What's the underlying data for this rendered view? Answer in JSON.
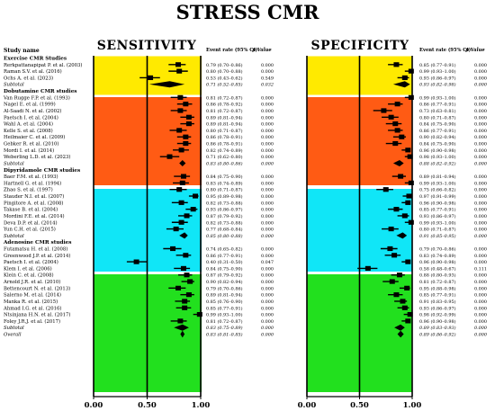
{
  "title": "STRESS CMR",
  "colors": {
    "exercise": "#ffea00",
    "dobutamine": "#ff5b14",
    "dipyridamole": "#10e6f7",
    "adenosine": "#22e01e"
  },
  "study_header": "Study name",
  "panels": [
    {
      "title": "SENSITIVITY",
      "col_rate": "Event rate (95% CI)",
      "col_p": "p Value"
    },
    {
      "title": "SPECIFICITY",
      "col_rate": "Event rate (95% CI)",
      "col_p": "p Value"
    }
  ],
  "axis_ticks": [
    "0.00",
    "0.50",
    "1.00"
  ],
  "chart_data": {
    "type": "forest",
    "xlim": [
      0,
      1
    ],
    "groups": [
      {
        "name": "Exercise CMR Studies",
        "color_key": "exercise",
        "rows": [
          {
            "name": "Rerkpattanapipat P. et al. (2003)",
            "sens": 0.79,
            "sens_ci": "0.79 (0.70–0.86)",
            "sens_p": "0.000",
            "spec": 0.85,
            "spec_ci": "0.85 (0.77–0.91)",
            "spec_p": "0.000"
          },
          {
            "name": "Raman S.V. et al. (2016)",
            "sens": 0.8,
            "sens_ci": "0.80 (0.70–0.88)",
            "sens_p": "0.000",
            "spec": 0.99,
            "spec_ci": "0.99 (0.93–1.00)",
            "spec_p": "0.000"
          },
          {
            "name": "Ochs A. et al. (2023)",
            "sens": 0.53,
            "sens_ci": "0.53 (0.43–0.62)",
            "sens_p": "0.549",
            "spec": 0.93,
            "spec_ci": "0.93 (0.86–0.97)",
            "spec_p": "0.000"
          },
          {
            "name": "Subtotal",
            "subtotal": true,
            "sens": 0.71,
            "sens_ci": "0.71 (0.52–0.85)",
            "sens_p": "0.032",
            "spec": 0.93,
            "spec_ci": "0.93 (0.82–0.98)",
            "spec_p": "0.000"
          }
        ]
      },
      {
        "name": "Dobutamine CMR studies",
        "color_key": "dobutamine",
        "rows": [
          {
            "name": "Van Rugge F.P. et al. (1993)",
            "sens": 0.81,
            "sens_ci": "0.81 (0.72–0.87)",
            "sens_p": "0.000",
            "spec": 0.99,
            "spec_ci": "0.99 (0.93–1.00)",
            "spec_p": "0.000"
          },
          {
            "name": "Nagel E. et al. (1999)",
            "sens": 0.86,
            "sens_ci": "0.86 (0.78–0.92)",
            "sens_p": "0.000",
            "spec": 0.86,
            "spec_ci": "0.86 (0.77–0.91)",
            "spec_p": "0.000"
          },
          {
            "name": "Al-Saadi N. et al. (2002)",
            "sens": 0.81,
            "sens_ci": "0.81 (0.72–0.87)",
            "sens_p": "0.000",
            "spec": 0.73,
            "spec_ci": "0.73 (0.63–0.81)",
            "spec_p": "0.000"
          },
          {
            "name": "Paetsch I. et al. (2004)",
            "sens": 0.89,
            "sens_ci": "0.89 (0.81–0.94)",
            "sens_p": "0.000",
            "spec": 0.8,
            "spec_ci": "0.80 (0.71–0.87)",
            "spec_p": "0.000"
          },
          {
            "name": "Wahl A. et al. (2004)",
            "sens": 0.89,
            "sens_ci": "0.89 (0.81–0.94)",
            "sens_p": "0.000",
            "spec": 0.84,
            "spec_ci": "0.84 (0.75–0.90)",
            "spec_p": "0.000"
          },
          {
            "name": "Kelle S. et al. (2008)",
            "sens": 0.8,
            "sens_ci": "0.80 (0.71–0.87)",
            "sens_p": "0.000",
            "spec": 0.86,
            "spec_ci": "0.86 (0.77–0.91)",
            "spec_p": "0.000"
          },
          {
            "name": "Heilmaier C. et al. (2009)",
            "sens": 0.86,
            "sens_ci": "0.86 (0.78–0.91)",
            "sens_p": "0.000",
            "spec": 0.9,
            "spec_ci": "0.90 (0.82–0.94)",
            "spec_p": "0.000"
          },
          {
            "name": "Gebker R. et al. (2010)",
            "sens": 0.86,
            "sens_ci": "0.86 (0.78–0.91)",
            "sens_p": "0.000",
            "spec": 0.84,
            "spec_ci": "0.84 (0.75–0.90)",
            "spec_p": "0.000"
          },
          {
            "name": "Mordi I. et al. (2014)",
            "sens": 0.82,
            "sens_ci": "0.82 (0.74–0.89)",
            "sens_p": "0.000",
            "spec": 0.96,
            "spec_ci": "0.96 (0.90–0.98)",
            "spec_p": "0.000"
          },
          {
            "name": "Weberling L.D. et al. (2023)",
            "sens": 0.71,
            "sens_ci": "0.71 (0.62–0.80)",
            "sens_p": "0.000",
            "spec": 0.98,
            "spec_ci": "0.98 (0.93–1.00)",
            "spec_p": "0.000"
          },
          {
            "name": "Subtotal",
            "subtotal": true,
            "sens": 0.83,
            "sens_ci": "0.83 (0.80–0.86)",
            "sens_p": "0.000",
            "spec": 0.88,
            "spec_ci": "0.88 (0.82–0.92)",
            "spec_p": "0.000"
          }
        ]
      },
      {
        "name": "Dipyridamole CMR studies",
        "color_key": "dipyridamole",
        "rows": [
          {
            "name": "Baer F.M. et al. (1993)",
            "sens": 0.84,
            "sens_ci": "0.84 (0.75–0.90)",
            "sens_p": "0.000",
            "spec": 0.89,
            "spec_ci": "0.89 (0.81–0.94)",
            "spec_p": "0.000"
          },
          {
            "name": "Hartnell G. et al. (1994)",
            "sens": 0.83,
            "sens_ci": "0.83 (0.74–0.89)",
            "sens_p": "0.000",
            "spec": 0.99,
            "spec_ci": "0.99 (0.93–1.00)",
            "spec_p": "0.000"
          },
          {
            "name": "Zhao S. et al. (1997)",
            "sens": 0.8,
            "sens_ci": "0.80 (0.71–0.87)",
            "sens_p": "0.000",
            "spec": 0.75,
            "spec_ci": "0.75 (0.66–0.82)",
            "spec_p": "0.000"
          },
          {
            "name": "Stauder N.I. et al. (2007)",
            "sens": 0.95,
            "sens_ci": "0.95 (0.89–0.98)",
            "sens_p": "0.000",
            "spec": 0.97,
            "spec_ci": "0.97 (0.91–0.99)",
            "spec_p": "0.000"
          },
          {
            "name": "Pingitore A. et al. (2008)",
            "sens": 0.82,
            "sens_ci": "0.82 (0.73–0.88)",
            "sens_p": "0.000",
            "spec": 0.96,
            "spec_ci": "0.96 (0.90–0.98)",
            "spec_p": "0.000"
          },
          {
            "name": "Takase B. et al. (2004)",
            "sens": 0.93,
            "sens_ci": "0.93 (0.86–0.97)",
            "sens_p": "0.000",
            "spec": 0.85,
            "spec_ci": "0.85 (0.77–0.91)",
            "spec_p": "0.000"
          },
          {
            "name": "Mordini F.E. et al. (2014)",
            "sens": 0.87,
            "sens_ci": "0.87 (0.79–0.92)",
            "sens_p": "0.000",
            "spec": 0.93,
            "spec_ci": "0.93 (0.86–0.97)",
            "spec_p": "0.000"
          },
          {
            "name": "Deva D.P. et al. (2014)",
            "sens": 0.82,
            "sens_ci": "0.82 (0.73–0.88)",
            "sens_p": "0.000",
            "spec": 0.99,
            "spec_ci": "0.99 (0.93–1.00)",
            "spec_p": "0.000"
          },
          {
            "name": "Yun C.H. et al. (2015)",
            "sens": 0.77,
            "sens_ci": "0.77 (0.68–0.84)",
            "sens_p": "0.000",
            "spec": 0.8,
            "spec_ci": "0.80 (0.71–0.87)",
            "spec_p": "0.000"
          },
          {
            "name": "Subtotal",
            "subtotal": true,
            "sens": 0.85,
            "sens_ci": "0.85 (0.80–0.88)",
            "sens_p": "0.000",
            "spec": 0.91,
            "spec_ci": "0.91 (0.85–0.95)",
            "spec_p": "0.000"
          }
        ]
      },
      {
        "name": "Adenosine CMR studies",
        "color_key": "adenosine",
        "rows": [
          {
            "name": "Futamatsu H. et al. (2008)",
            "sens": 0.74,
            "sens_ci": "0.74 (0.65–0.82)",
            "sens_p": "0.000",
            "spec": 0.79,
            "spec_ci": "0.79 (0.70–0.86)",
            "spec_p": "0.000"
          },
          {
            "name": "Greenwood J.P. et al. (2014)",
            "sens": 0.86,
            "sens_ci": "0.86 (0.77–0.91)",
            "sens_p": "0.000",
            "spec": 0.83,
            "spec_ci": "0.83 (0.74–0.89)",
            "spec_p": "0.000"
          },
          {
            "name": "Paetsch I. et al. (2004)",
            "sens": 0.4,
            "sens_ci": "0.40 (0.31–0.50)",
            "sens_p": "0.047",
            "spec": 0.96,
            "spec_ci": "0.96 (0.90–0.98)",
            "spec_p": "0.000"
          },
          {
            "name": "Klem I. et al. (2006)",
            "sens": 0.84,
            "sens_ci": "0.84 (0.75–0.90)",
            "sens_p": "0.000",
            "spec": 0.58,
            "spec_ci": "0.58 (0.48–0.67)",
            "spec_p": "0.111"
          },
          {
            "name": "Klein C. et al. (2008)",
            "sens": 0.87,
            "sens_ci": "0.87 (0.79–0.92)",
            "sens_p": "0.000",
            "spec": 0.88,
            "spec_ci": "0.88 (0.80–0.93)",
            "spec_p": "0.000"
          },
          {
            "name": "Arnold J.R. et al. (2010)",
            "sens": 0.9,
            "sens_ci": "0.90 (0.82–0.94)",
            "sens_p": "0.000",
            "spec": 0.81,
            "spec_ci": "0.81 (0.72–0.87)",
            "spec_p": "0.000"
          },
          {
            "name": "Bettencourt N. et al. (2013)",
            "sens": 0.79,
            "sens_ci": "0.79 (0.70–0.86)",
            "sens_p": "0.000",
            "spec": 0.95,
            "spec_ci": "0.95 (0.88–0.98)",
            "spec_p": "0.000"
          },
          {
            "name": "Salerno M. et al. (2014)",
            "sens": 0.89,
            "sens_ci": "0.89 (0.81–0.94)",
            "sens_p": "0.000",
            "spec": 0.85,
            "spec_ci": "0.85 (0.77–0.91)",
            "spec_p": "0.000"
          },
          {
            "name": "Manka R. et al. (2015)",
            "sens": 0.85,
            "sens_ci": "0.85 (0.76–0.90)",
            "sens_p": "0.000",
            "spec": 0.91,
            "spec_ci": "0.91 (0.83–0.95)",
            "spec_p": "0.000"
          },
          {
            "name": "Ahmad I.G. et al. (2016)",
            "sens": 0.85,
            "sens_ci": "0.85 (0.77–0.91)",
            "sens_p": "0.000",
            "spec": 0.93,
            "spec_ci": "0.93 (0.86–0.97)",
            "spec_p": "0.000"
          },
          {
            "name": "Ntsinjana H.N. et al. (2017)",
            "sens": 0.99,
            "sens_ci": "0.99 (0.93–1.00)",
            "sens_p": "0.000",
            "spec": 0.98,
            "spec_ci": "0.98 (0.92–0.99)",
            "spec_p": "0.000"
          },
          {
            "name": "Foley J.R.J. et al. (2017)",
            "sens": 0.81,
            "sens_ci": "0.81 (0.72–0.87)",
            "sens_p": "0.000",
            "spec": 0.96,
            "spec_ci": "0.96 (0.90–0.98)",
            "spec_p": "0.000"
          },
          {
            "name": "Subtotal",
            "subtotal": true,
            "sens": 0.83,
            "sens_ci": "0.83 (0.75–0.89)",
            "sens_p": "0.000",
            "spec": 0.89,
            "spec_ci": "0.89 (0.83–0.93)",
            "spec_p": "0.000"
          }
        ]
      }
    ],
    "overall": {
      "name": "Overall",
      "sens": 0.83,
      "sens_ci": "0.83 (0.81–0.85)",
      "sens_p": "0.000",
      "spec": 0.89,
      "spec_ci": "0.89 (0.86–0.92)",
      "spec_p": "0.000"
    }
  }
}
